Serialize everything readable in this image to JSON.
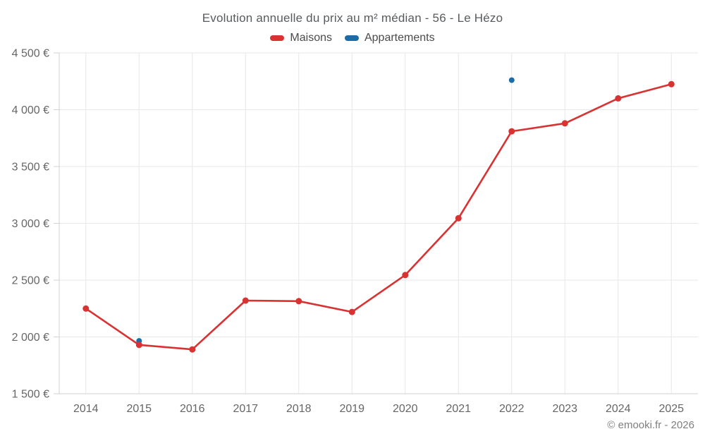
{
  "header": {
    "title": "Evolution annuelle du prix au m² médian - 56 - Le Hézo"
  },
  "legend": {
    "items": [
      {
        "label": "Maisons",
        "color": "#d93232"
      },
      {
        "label": "Appartements",
        "color": "#1b6ca8"
      }
    ]
  },
  "footer": {
    "credit": "© emooki.fr - 2026"
  },
  "chart_data": {
    "type": "line",
    "title": "Evolution annuelle du prix au m² médian - 56 - Le Hézo",
    "xlabel": "",
    "ylabel": "",
    "categories": [
      "2014",
      "2015",
      "2016",
      "2017",
      "2018",
      "2019",
      "2020",
      "2021",
      "2022",
      "2023",
      "2024",
      "2025"
    ],
    "series": [
      {
        "name": "Maisons",
        "type": "line",
        "color": "#d93232",
        "values": [
          2250,
          1930,
          1890,
          2320,
          2315,
          2220,
          2545,
          3045,
          3810,
          3880,
          4100,
          4225
        ]
      },
      {
        "name": "Appartements",
        "type": "scatter",
        "color": "#1b6ca8",
        "values": [
          null,
          1965,
          null,
          null,
          null,
          null,
          null,
          null,
          4260,
          null,
          null,
          null
        ]
      }
    ],
    "ylim": [
      1500,
      4500
    ],
    "yticks": [
      {
        "value": 1500,
        "label": "1 500 €"
      },
      {
        "value": 2000,
        "label": "2 000 €"
      },
      {
        "value": 2500,
        "label": "2 500 €"
      },
      {
        "value": 3000,
        "label": "3 000 €"
      },
      {
        "value": 3500,
        "label": "3 500 €"
      },
      {
        "value": 4000,
        "label": "4 000 €"
      },
      {
        "value": 4500,
        "label": "4 500 €"
      }
    ],
    "grid": true,
    "legend_position": "top"
  }
}
